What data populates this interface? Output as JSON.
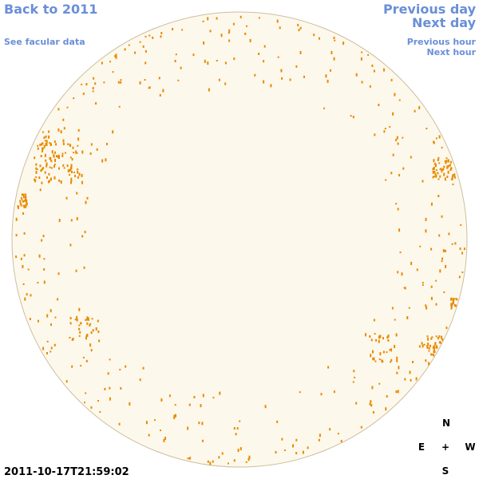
{
  "navigation": {
    "back_to_year": "Back to 2011",
    "see_facular_data": "See facular data",
    "previous_day": "Previous day",
    "next_day": "Next day",
    "previous_hour": "Previous hour",
    "next_hour": "Next hour"
  },
  "image": {
    "timestamp": "2011-10-17T21:59:02"
  },
  "compass": {
    "north": "N",
    "east": "E",
    "center": "+",
    "west": "W",
    "south": "S"
  }
}
